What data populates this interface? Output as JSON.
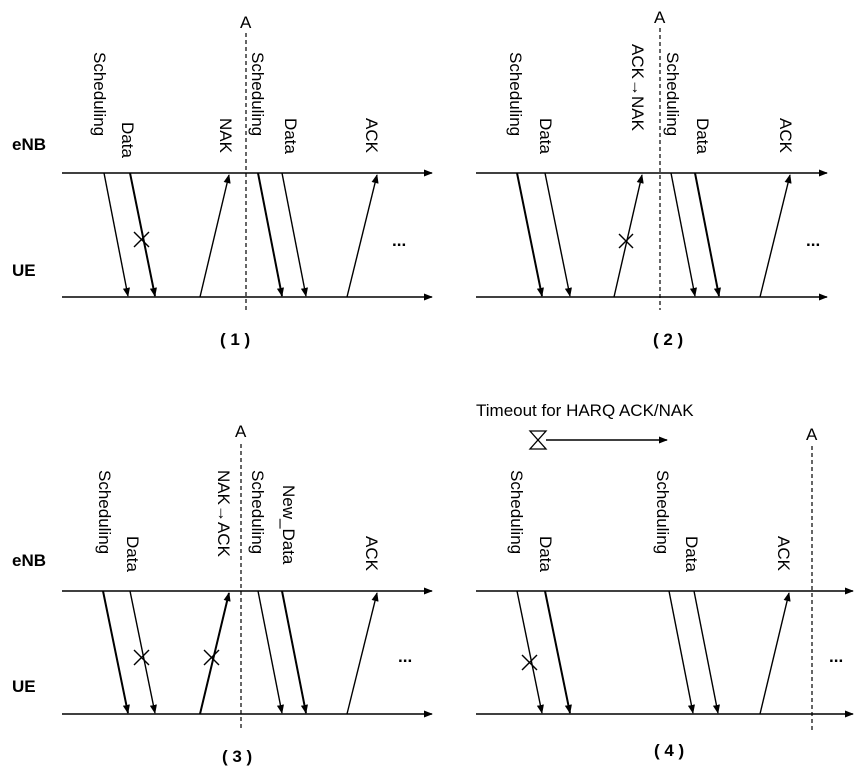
{
  "entities": {
    "enb": "eNB",
    "ue": "UE"
  },
  "marker": "A",
  "ellipsis": "...",
  "labels": {
    "scheduling": "Scheduling",
    "data": "Data",
    "nak": "NAK",
    "ack": "ACK",
    "ack_to_nak": "ACK→NAK",
    "nak_to_ack": "NAK→ACK",
    "new_data": "New_Data"
  },
  "timeout_label": "Timeout for HARQ ACK/NAK",
  "panels": [
    {
      "caption": "( 1 )"
    },
    {
      "caption": "( 2 )"
    },
    {
      "caption": "( 3 )"
    },
    {
      "caption": "( 4 )"
    }
  ]
}
